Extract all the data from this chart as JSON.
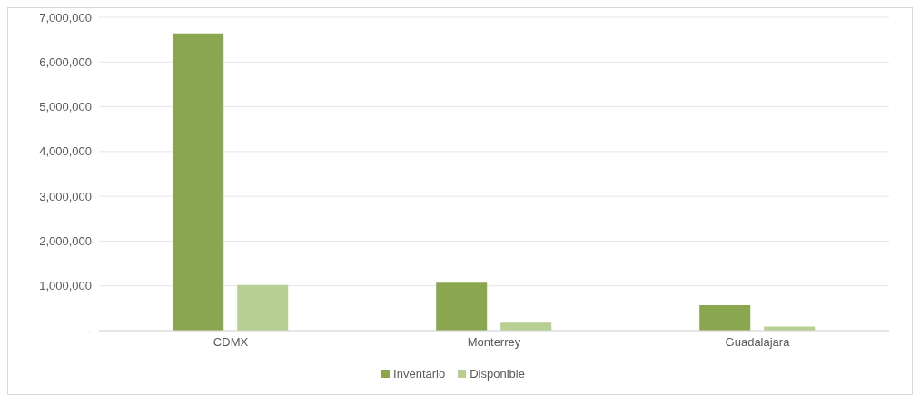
{
  "chart_data": {
    "type": "bar",
    "categories": [
      "CDMX",
      "Monterrey",
      "Guadalajara"
    ],
    "series": [
      {
        "name": "Inventario",
        "color": "#8aa64e",
        "values": [
          6640000,
          1070000,
          570000
        ]
      },
      {
        "name": "Disponible",
        "color": "#b8cf94",
        "values": [
          1020000,
          180000,
          90000
        ]
      }
    ],
    "ylim": [
      0,
      7000000
    ],
    "yticks": [
      {
        "value": 0,
        "label": "-"
      },
      {
        "value": 1000000,
        "label": "1,000,000"
      },
      {
        "value": 2000000,
        "label": "2,000,000"
      },
      {
        "value": 3000000,
        "label": "3,000,000"
      },
      {
        "value": 4000000,
        "label": "4,000,000"
      },
      {
        "value": 5000000,
        "label": "5,000,000"
      },
      {
        "value": 6000000,
        "label": "6,000,000"
      },
      {
        "value": 7000000,
        "label": "7,000,000"
      }
    ],
    "grid": "y",
    "legend": "bottom"
  }
}
